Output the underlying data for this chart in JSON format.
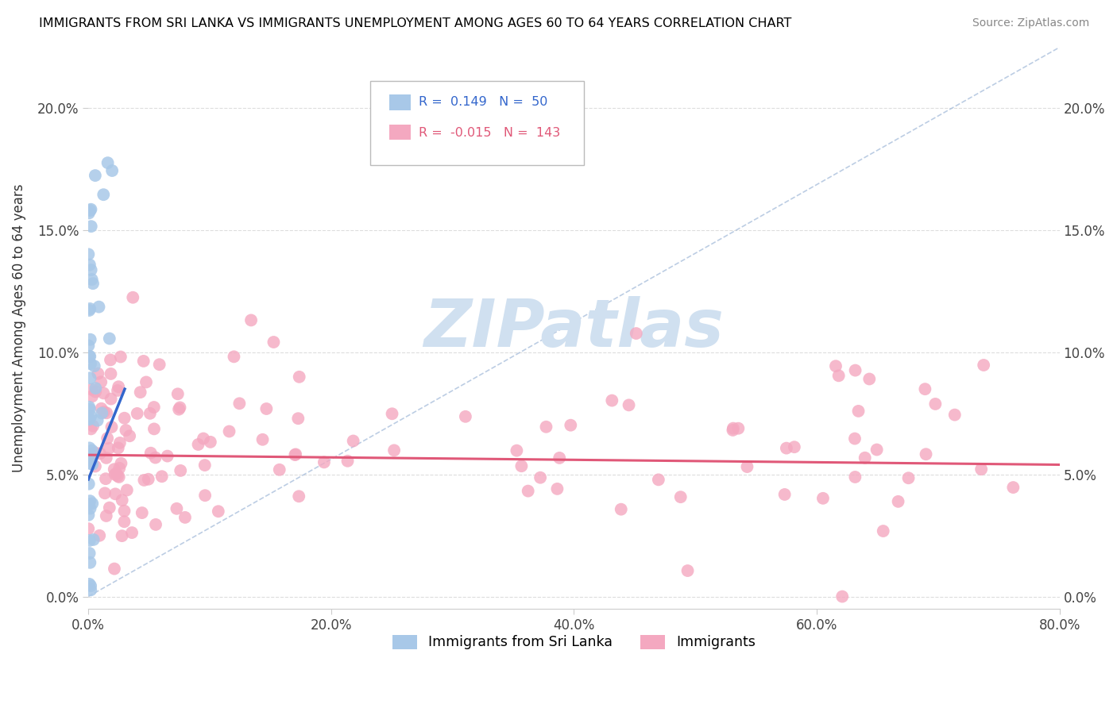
{
  "title": "IMMIGRANTS FROM SRI LANKA VS IMMIGRANTS UNEMPLOYMENT AMONG AGES 60 TO 64 YEARS CORRELATION CHART",
  "source": "Source: ZipAtlas.com",
  "ylabel": "Unemployment Among Ages 60 to 64 years",
  "blue_R": 0.149,
  "blue_N": 50,
  "pink_R": -0.015,
  "pink_N": 143,
  "blue_color": "#a8c8e8",
  "pink_color": "#f4a8c0",
  "blue_line_color": "#3366cc",
  "pink_line_color": "#e05878",
  "dash_line_color": "#a0b8d8",
  "watermark_color": "#d0e0f0",
  "xlim": [
    0.0,
    0.8
  ],
  "ylim": [
    -0.005,
    0.225
  ],
  "yticks": [
    0.0,
    0.05,
    0.1,
    0.15,
    0.2
  ],
  "ytick_labels": [
    "0.0%",
    "5.0%",
    "10.0%",
    "15.0%",
    "20.0%"
  ],
  "xticks": [
    0.0,
    0.2,
    0.4,
    0.6,
    0.8
  ],
  "xtick_labels": [
    "0.0%",
    "20.0%",
    "40.0%",
    "60.0%",
    "80.0%"
  ],
  "legend_label_blue": "Immigrants from Sri Lanka",
  "legend_label_pink": "Immigrants",
  "background_color": "#ffffff",
  "grid_color": "#dddddd",
  "blue_trend_x": [
    0.0,
    0.03
  ],
  "blue_trend_y": [
    0.048,
    0.085
  ],
  "pink_trend_x": [
    0.0,
    0.8
  ],
  "pink_trend_y": [
    0.058,
    0.054
  ],
  "diag_line_x": [
    0.0,
    0.8
  ],
  "diag_line_y": [
    0.0,
    0.225
  ]
}
